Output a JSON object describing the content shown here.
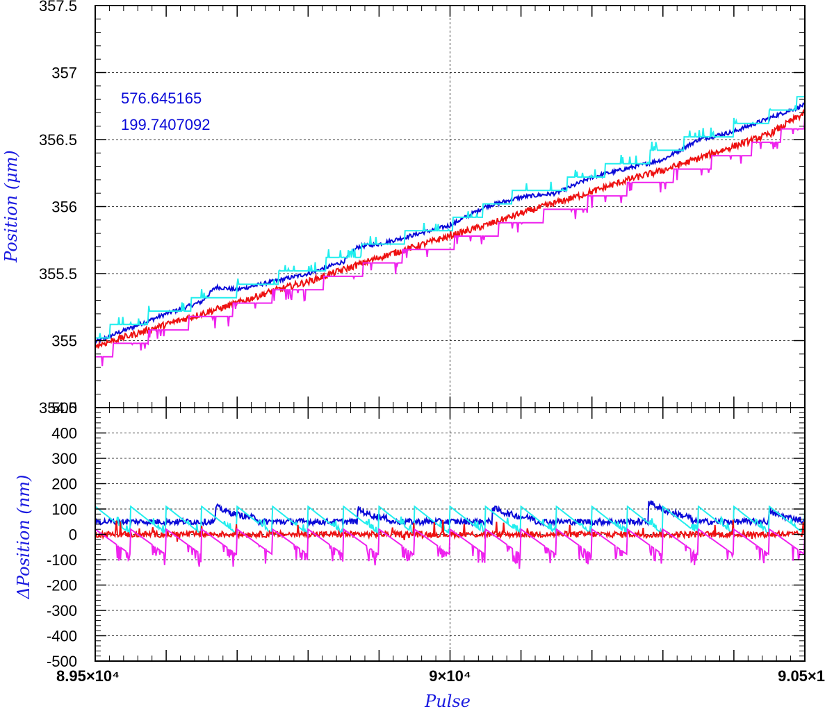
{
  "colors": {
    "blue": "#0a0ad8",
    "cyan": "#22eeee",
    "red": "#ee1111",
    "magenta": "#ee22ee",
    "axis_title": "#1a1ae0",
    "grid": "#000000"
  },
  "chart_data": [
    {
      "type": "line",
      "panel": "top",
      "ylabel": "Position (μm)",
      "xlim": [
        89500,
        90500
      ],
      "ylim": [
        354.5,
        357.5
      ],
      "yticks": [
        354.5,
        355,
        355.5,
        356,
        356.5,
        357,
        357.5
      ],
      "ytick_labels": [
        "354.5",
        "355",
        "355.5",
        "356",
        "356.5",
        "357",
        "357.5"
      ],
      "annotations": [
        "576.645165",
        "199.7407092"
      ],
      "grid": true,
      "series": [
        {
          "color_key": "blue",
          "x": [
            89500,
            89600,
            89650,
            89670,
            89700,
            89800,
            89850,
            89870,
            89900,
            90000,
            90050,
            90100,
            90150,
            90200,
            90300,
            90350,
            90400,
            90500
          ],
          "values": [
            354.99,
            355.2,
            355.29,
            355.4,
            355.38,
            355.5,
            355.59,
            355.7,
            355.72,
            355.86,
            356.0,
            356.07,
            356.1,
            356.22,
            356.35,
            356.5,
            356.56,
            356.76
          ]
        },
        {
          "color_key": "cyan",
          "x": [
            89500,
            89550,
            89600,
            89650,
            89700,
            89750,
            89800,
            89850,
            89900,
            89950,
            90000,
            90050,
            90100,
            90150,
            90200,
            90250,
            90300,
            90350,
            90400,
            90450,
            90500
          ],
          "values": [
            355.0,
            355.12,
            355.18,
            355.28,
            355.35,
            355.44,
            355.5,
            355.6,
            355.7,
            355.77,
            355.84,
            355.96,
            356.08,
            356.12,
            356.22,
            356.3,
            356.38,
            356.5,
            356.55,
            356.65,
            356.78
          ]
        },
        {
          "color_key": "red",
          "x": [
            89500,
            89550,
            89600,
            89650,
            89700,
            89750,
            89800,
            89850,
            89900,
            89950,
            90000,
            90050,
            90100,
            90150,
            90200,
            90250,
            90300,
            90350,
            90400,
            90450,
            90500
          ],
          "values": [
            354.96,
            355.04,
            355.12,
            355.2,
            355.28,
            355.37,
            355.44,
            355.53,
            355.62,
            355.7,
            355.78,
            355.86,
            355.95,
            356.03,
            356.11,
            356.2,
            356.27,
            356.36,
            356.45,
            356.54,
            356.7
          ]
        },
        {
          "color_key": "magenta",
          "x": [
            89500,
            89550,
            89600,
            89650,
            89700,
            89750,
            89800,
            89850,
            89900,
            89950,
            90000,
            90050,
            90100,
            90150,
            90200,
            90250,
            90300,
            90350,
            90400,
            90450,
            90500
          ],
          "values": [
            354.9,
            355.0,
            355.1,
            355.18,
            355.26,
            355.35,
            355.41,
            355.5,
            355.59,
            355.68,
            355.74,
            355.82,
            355.9,
            355.98,
            356.06,
            356.15,
            356.22,
            356.32,
            356.4,
            356.5,
            356.65
          ]
        }
      ]
    },
    {
      "type": "line",
      "panel": "bottom",
      "xlabel": "Pulse",
      "ylabel": "ΔPosition (nm)",
      "xlim": [
        89500,
        90500
      ],
      "ylim": [
        -500,
        500
      ],
      "yticks": [
        -500,
        -400,
        -300,
        -200,
        -100,
        0,
        100,
        200,
        300,
        400,
        500
      ],
      "ytick_labels": [
        "-500",
        "-400",
        "-300",
        "-200",
        "-100",
        "0",
        "100",
        "200",
        "300",
        "400",
        "500"
      ],
      "xticks": [
        89500,
        90000,
        90500
      ],
      "xtick_labels": [
        "8.95×10⁴",
        "9×10⁴",
        "9.05×1"
      ],
      "grid": true,
      "series": [
        {
          "color_key": "blue",
          "baseline": 50,
          "noise": 12,
          "events": [
            [
              89670,
              110,
              40
            ],
            [
              89870,
              100,
              30
            ],
            [
              90060,
              105,
              40
            ],
            [
              90280,
              130,
              40
            ],
            [
              90450,
              90,
              30
            ]
          ]
        },
        {
          "color_key": "cyan",
          "sawtooth": true,
          "high": 110,
          "low": 0,
          "period": 50
        },
        {
          "color_key": "red",
          "baseline": 0,
          "noise": 12
        },
        {
          "color_key": "magenta",
          "sawtooth": true,
          "high": 20,
          "low": -80,
          "period": 50
        }
      ]
    }
  ]
}
